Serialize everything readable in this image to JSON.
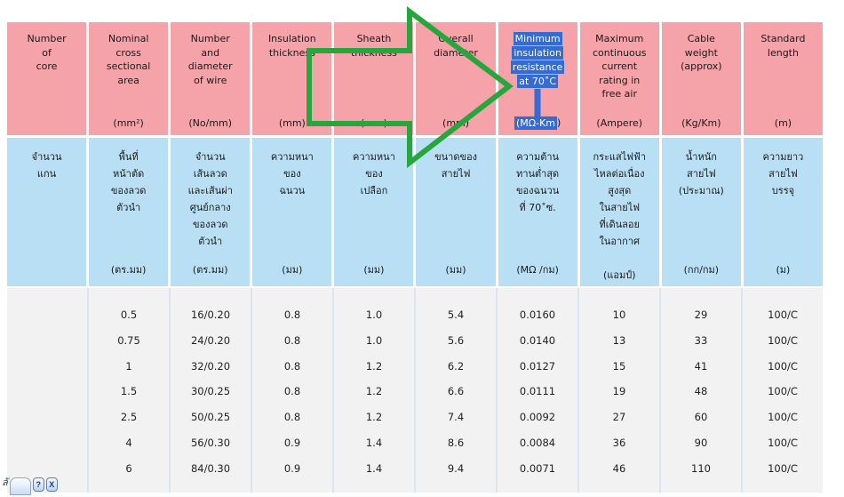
{
  "colors": {
    "header_pink": "#F5A2A9",
    "header_blue": "#B9DFF4",
    "selection_blue": "#366BD2",
    "data_bg": "#F2F2F2",
    "arrow_green": "#26A63C"
  },
  "annotation": {
    "type": "block-arrow-right",
    "color": "#26A63C",
    "points_to": "Minimum insulation resistance at 70˚C column"
  },
  "table": {
    "columns": [
      {
        "key": "number-of-core",
        "en": [
          "Number",
          "of",
          "core"
        ],
        "en_unit": "",
        "th": [
          "จำนวน",
          "แกน"
        ],
        "th_unit": ""
      },
      {
        "key": "nominal-cross-sectional-area",
        "en": [
          "Nominal",
          "cross",
          "sectional",
          "area"
        ],
        "en_unit": "(mm²)",
        "th": [
          "พื้นที่",
          "หน้าตัด",
          "ของลวด",
          "ตัวนำ"
        ],
        "th_unit": "(ตร.มม)"
      },
      {
        "key": "number-and-diameter-of-wire",
        "en": [
          "Number",
          "and",
          "diameter",
          "of wire"
        ],
        "en_unit": "(No/mm)",
        "th": [
          "จำนวน",
          "เส้นลวด",
          "และเส้นผ่า",
          "ศูนย์กลาง",
          "ของลวด",
          "ตัวนำ"
        ],
        "th_unit": "(ตร.มม)"
      },
      {
        "key": "insulation-thickness",
        "en": [
          "Insulation",
          "thickness"
        ],
        "en_unit": "(mm)",
        "th": [
          "ความหนา",
          "ของ",
          "ฉนวน"
        ],
        "th_unit": "(มม)"
      },
      {
        "key": "sheath-thickness",
        "en": [
          "Sheath",
          "thickness"
        ],
        "en_unit": "(mm)",
        "th": [
          "ความหนา",
          "ของ",
          "เปลือก"
        ],
        "th_unit": "(มม)"
      },
      {
        "key": "overall-diameter",
        "en": [
          "Overall",
          "diameter"
        ],
        "en_unit": "(mm)",
        "th": [
          "ขนาดของ",
          "สายไฟ"
        ],
        "th_unit": "(มม)"
      },
      {
        "key": "min-insulation-resistance",
        "highlighted": true,
        "en": [
          "Minimum",
          "insulation",
          "resistance",
          "at 70˚C"
        ],
        "en_unit": "(MΩ-Km",
        "en_unit_rest": ")",
        "th": [
          "ความต้าน",
          "ทานต่ำสุด",
          "ของฉนวน",
          "ที่ 70˚ซ."
        ],
        "th_unit": "(MΩ /กม)"
      },
      {
        "key": "max-continuous-current",
        "en": [
          "Maximum",
          "continuous",
          "current",
          "rating in",
          "free air"
        ],
        "en_unit": "(Ampere)",
        "th": [
          "กระแสไฟฟ้า",
          "ไหลต่อเนื่อง",
          "สูงสุด",
          "ในสายไฟ",
          "ที่เดินลอย",
          "ในอากาศ",
          "",
          "(แอมป์)"
        ],
        "th_unit": ""
      },
      {
        "key": "cable-weight",
        "en": [
          "Cable",
          "weight",
          "(approx)"
        ],
        "en_unit": "(Kg/Km)",
        "th": [
          "น้ำหนัก",
          "สายไฟ",
          "(ประมาณ)"
        ],
        "th_unit": "(กก/กม)"
      },
      {
        "key": "standard-length",
        "en": [
          "Standard",
          "length"
        ],
        "en_unit": "(m)",
        "th": [
          "ความยาว",
          "สายไฟ",
          "บรรจุ"
        ],
        "th_unit": "(ม)"
      }
    ],
    "rows": [
      [
        "",
        "0.5",
        "16/0.20",
        "0.8",
        "1.0",
        "5.4",
        "0.0160",
        "10",
        "29",
        "100/C"
      ],
      [
        "",
        "0.75",
        "24/0.20",
        "0.8",
        "1.0",
        "5.6",
        "0.0140",
        "13",
        "33",
        "100/C"
      ],
      [
        "",
        "1",
        "32/0.20",
        "0.8",
        "1.2",
        "6.2",
        "0.0127",
        "15",
        "41",
        "100/C"
      ],
      [
        "",
        "1.5",
        "30/0.25",
        "0.8",
        "1.2",
        "6.6",
        "0.0111",
        "19",
        "48",
        "100/C"
      ],
      [
        "",
        "2.5",
        "50/0.25",
        "0.8",
        "1.2",
        "7.4",
        "0.0092",
        "27",
        "60",
        "100/C"
      ],
      [
        "",
        "4",
        "56/0.30",
        "0.9",
        "1.4",
        "8.6",
        "0.0084",
        "36",
        "90",
        "100/C"
      ],
      [
        "",
        "6",
        "84/0.30",
        "0.9",
        "1.4",
        "9.4",
        "0.0071",
        "46",
        "110",
        "100/C"
      ]
    ]
  },
  "language_bar": {
    "pen_glyph": "ลั",
    "help_label": "?",
    "close_label": "X"
  }
}
